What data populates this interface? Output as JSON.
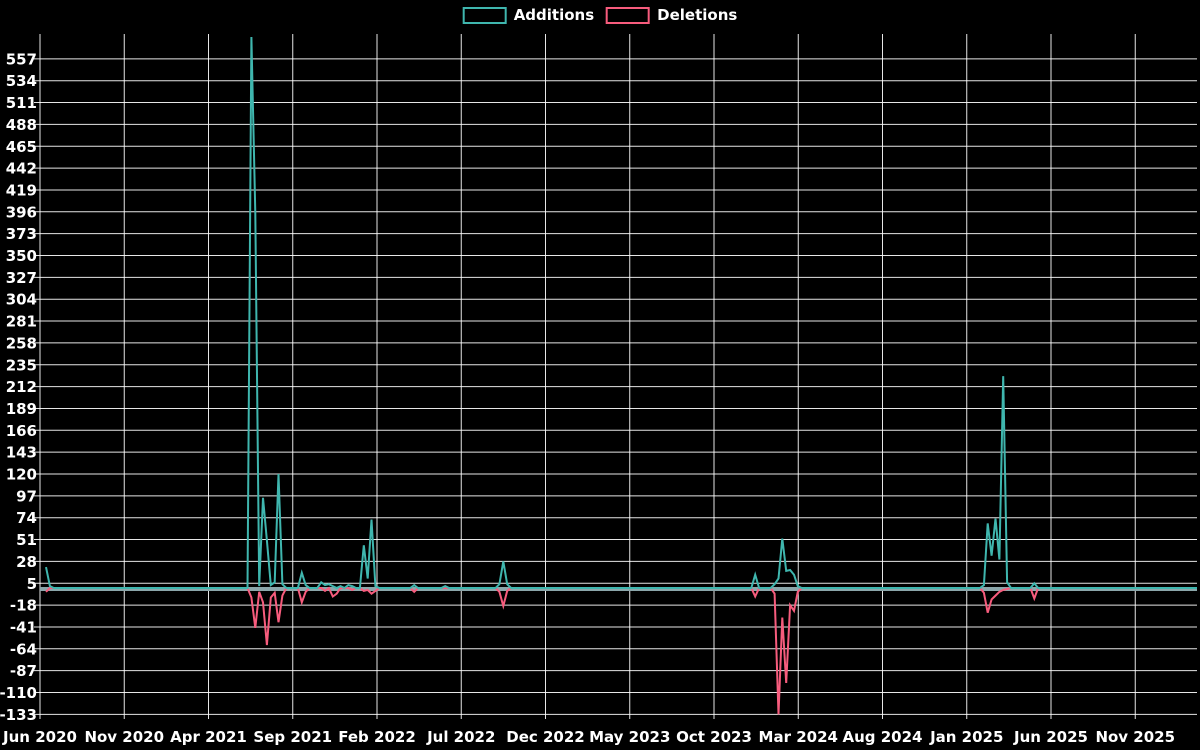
{
  "legend": {
    "additions_label": "Additions",
    "deletions_label": "Deletions"
  },
  "colors": {
    "background": "#000000",
    "grid": "#ffffff",
    "zero_line": "#8ba6aa",
    "text": "#ffffff",
    "additions": "#3fb6ae",
    "deletions": "#f75c7d"
  },
  "chart_data": {
    "type": "line",
    "title": "",
    "legend_position": "top-center",
    "grid": true,
    "x_axis": {
      "labels": [
        "Jun 2020",
        "Nov 2020",
        "Apr 2021",
        "Sep 2021",
        "Feb 2022",
        "Jul 2022",
        "Dec 2022",
        "May 2023",
        "Oct 2023",
        "Mar 2024",
        "Aug 2024",
        "Jan 2025",
        "Jun 2025",
        "Nov 2025"
      ],
      "unit": "week",
      "total_weeks": 297
    },
    "y_axis": {
      "ticks": [
        557,
        534,
        511,
        488,
        465,
        442,
        419,
        396,
        373,
        350,
        327,
        304,
        281,
        258,
        235,
        212,
        189,
        166,
        143,
        120,
        97,
        74,
        51,
        28,
        5,
        -18,
        -41,
        -64,
        -87,
        -110,
        -133
      ],
      "min": -133,
      "max": 580,
      "tick_step": 23
    },
    "series": [
      {
        "name": "Additions",
        "color": "#3fb6ae",
        "default_value": 0,
        "points_nonzero": [
          [
            0,
            22
          ],
          [
            1,
            2
          ],
          [
            53,
            580
          ],
          [
            54,
            395
          ],
          [
            55,
            2
          ],
          [
            56,
            95
          ],
          [
            57,
            50
          ],
          [
            58,
            3
          ],
          [
            59,
            6
          ],
          [
            60,
            120
          ],
          [
            61,
            4
          ],
          [
            66,
            16
          ],
          [
            67,
            3
          ],
          [
            71,
            6
          ],
          [
            72,
            3
          ],
          [
            73,
            4
          ],
          [
            74,
            2
          ],
          [
            76,
            2
          ],
          [
            78,
            3
          ],
          [
            79,
            2
          ],
          [
            82,
            45
          ],
          [
            83,
            10
          ],
          [
            84,
            72
          ],
          [
            85,
            2
          ],
          [
            95,
            3
          ],
          [
            103,
            2
          ],
          [
            117,
            4
          ],
          [
            118,
            28
          ],
          [
            119,
            4
          ],
          [
            183,
            14
          ],
          [
            188,
            4
          ],
          [
            189,
            10
          ],
          [
            190,
            52
          ],
          [
            191,
            18
          ],
          [
            192,
            19
          ],
          [
            193,
            14
          ],
          [
            194,
            2
          ],
          [
            242,
            3
          ],
          [
            243,
            68
          ],
          [
            244,
            34
          ],
          [
            245,
            73
          ],
          [
            246,
            30
          ],
          [
            247,
            223
          ],
          [
            248,
            6
          ],
          [
            255,
            5
          ]
        ]
      },
      {
        "name": "Deletions",
        "color": "#f75c7d",
        "default_value": 0,
        "points_nonzero": [
          [
            0,
            -4
          ],
          [
            53,
            -10
          ],
          [
            54,
            -42
          ],
          [
            55,
            -4
          ],
          [
            56,
            -15
          ],
          [
            57,
            -60
          ],
          [
            58,
            -10
          ],
          [
            59,
            -5
          ],
          [
            60,
            -36
          ],
          [
            61,
            -8
          ],
          [
            66,
            -15
          ],
          [
            67,
            -4
          ],
          [
            72,
            -3
          ],
          [
            74,
            -9
          ],
          [
            75,
            -6
          ],
          [
            79,
            -2
          ],
          [
            82,
            -3
          ],
          [
            83,
            -2
          ],
          [
            84,
            -6
          ],
          [
            85,
            -3
          ],
          [
            95,
            -4
          ],
          [
            117,
            -4
          ],
          [
            118,
            -19
          ],
          [
            119,
            -3
          ],
          [
            183,
            -9
          ],
          [
            188,
            -6
          ],
          [
            189,
            -133
          ],
          [
            190,
            -31
          ],
          [
            191,
            -100
          ],
          [
            192,
            -18
          ],
          [
            193,
            -24
          ],
          [
            194,
            -4
          ],
          [
            242,
            -5
          ],
          [
            243,
            -26
          ],
          [
            244,
            -12
          ],
          [
            245,
            -8
          ],
          [
            246,
            -4
          ],
          [
            247,
            -2
          ],
          [
            248,
            -1
          ],
          [
            255,
            -11
          ]
        ]
      }
    ]
  }
}
